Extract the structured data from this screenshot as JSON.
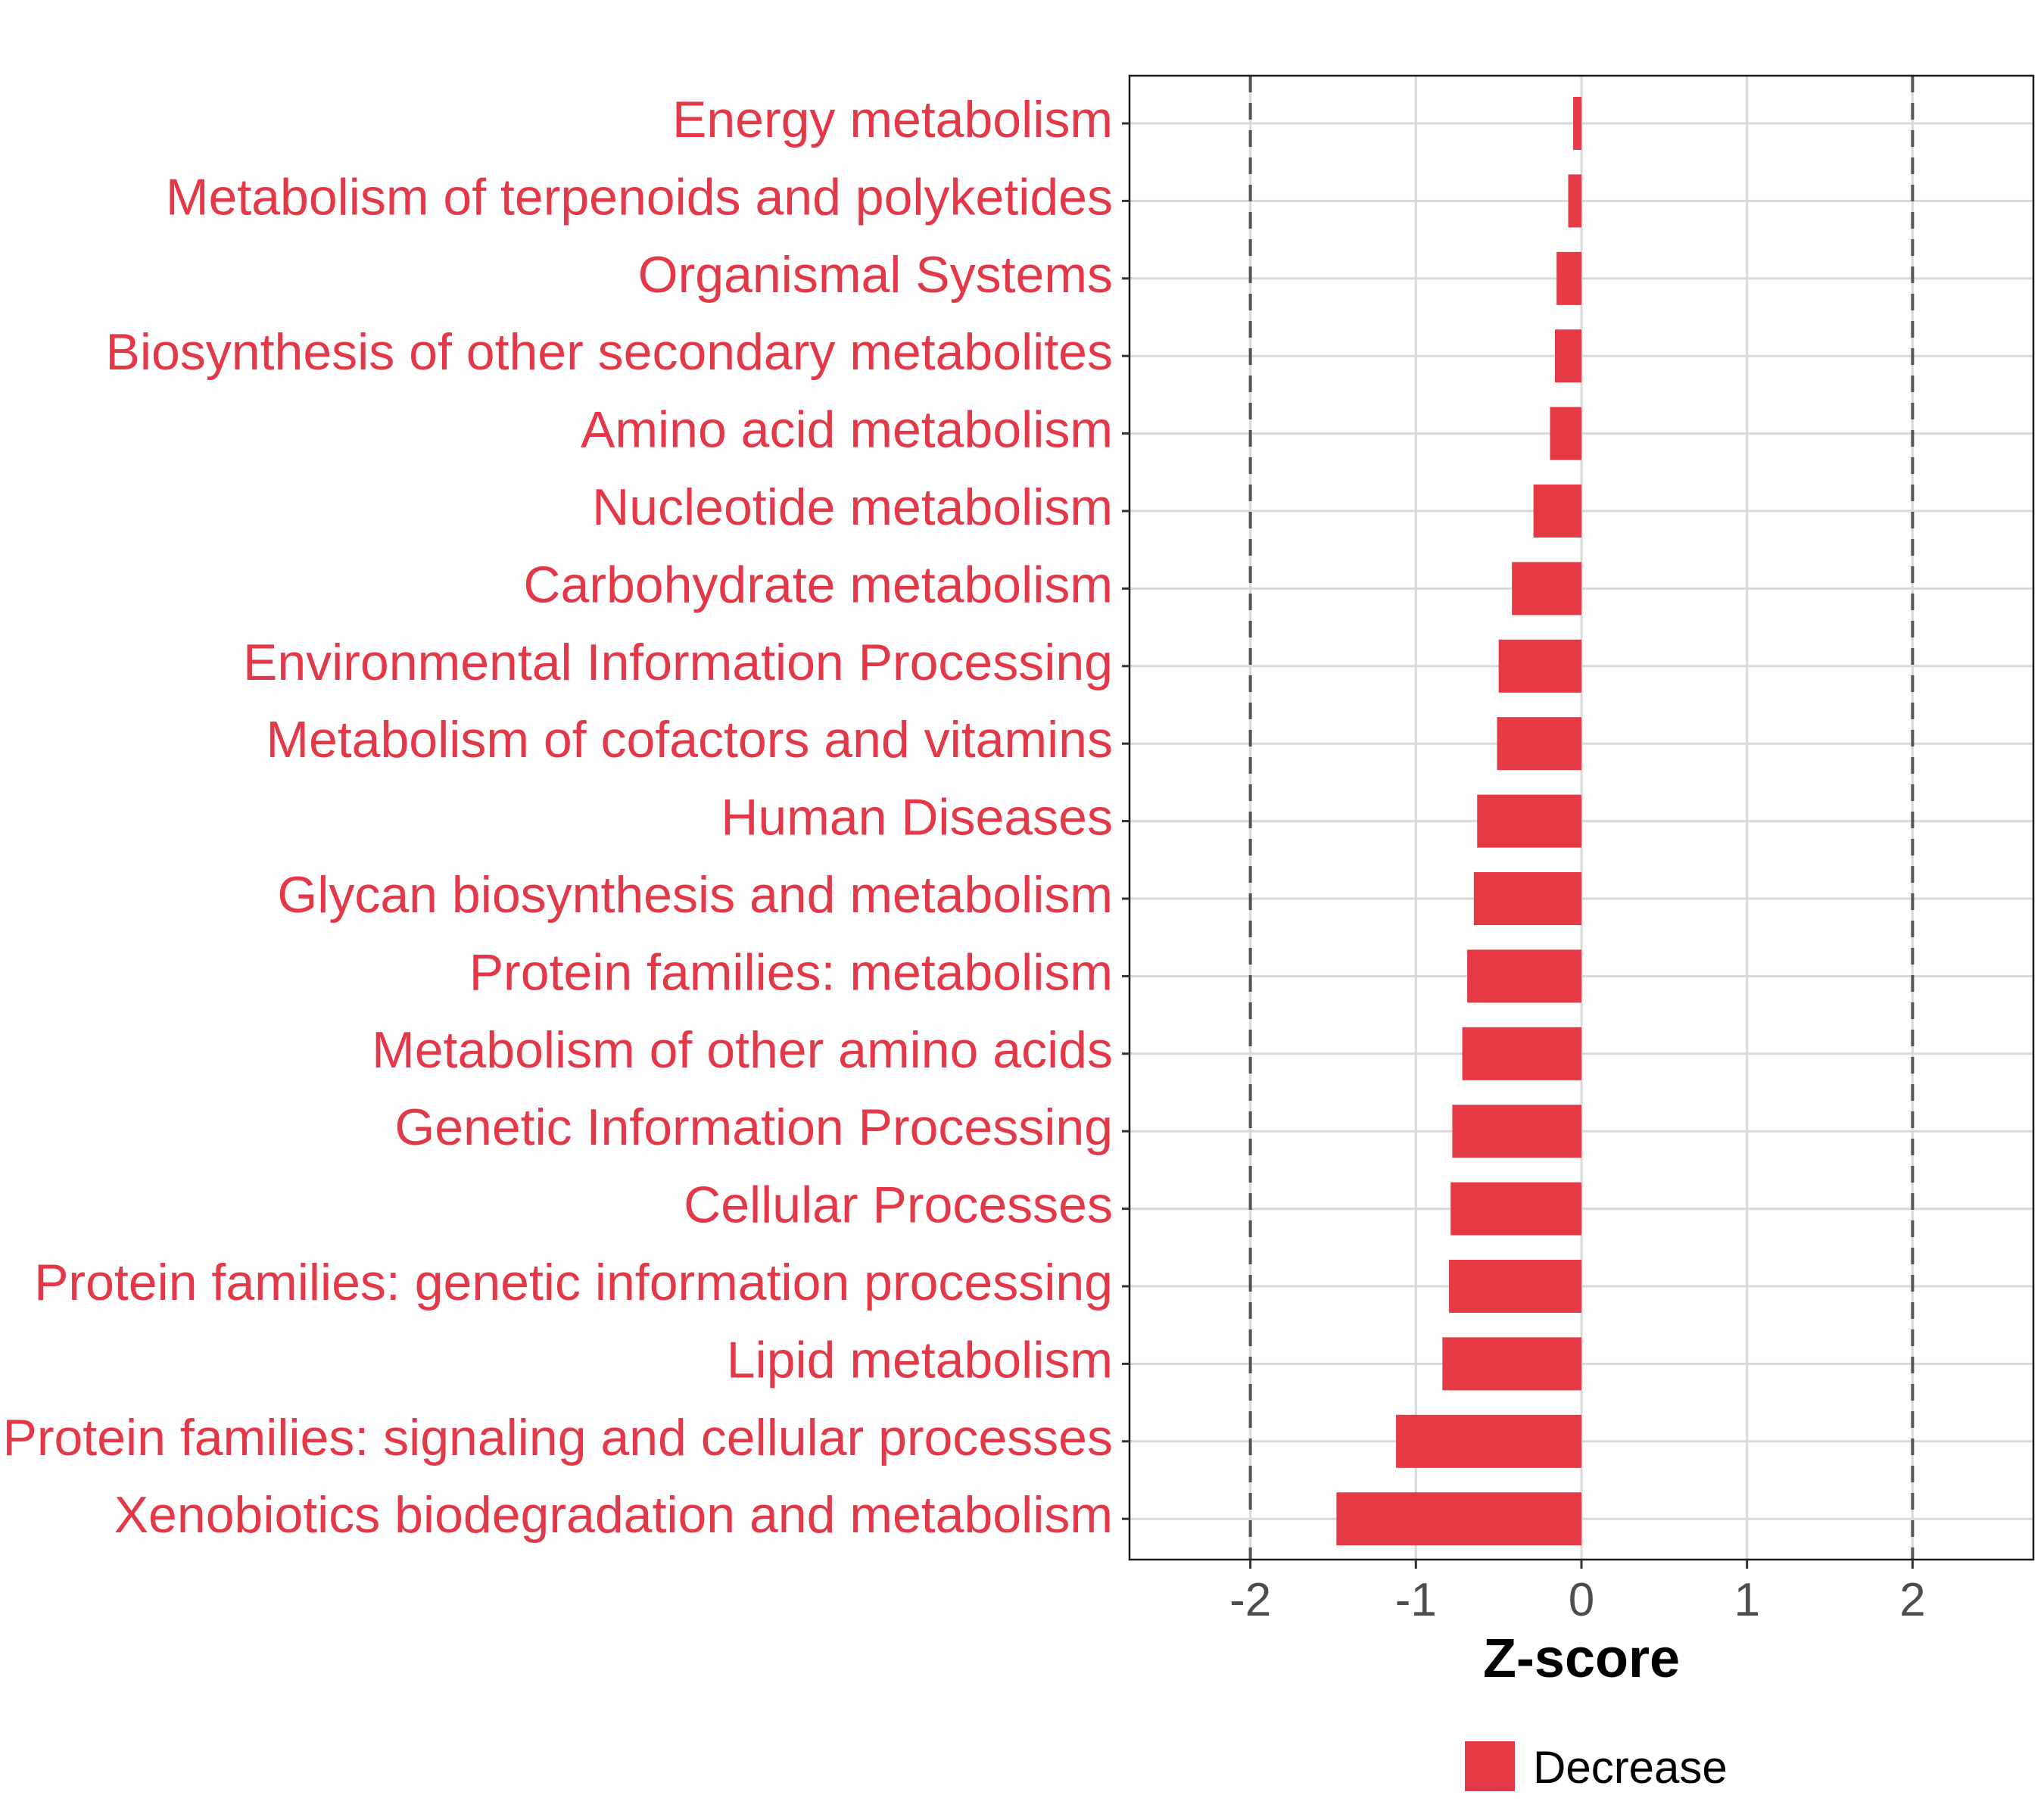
{
  "chart_data": {
    "type": "bar",
    "orientation": "horizontal",
    "categories": [
      "Energy metabolism",
      "Metabolism of terpenoids and polyketides",
      "Organismal Systems",
      "Biosynthesis of other secondary metabolites",
      "Amino acid metabolism",
      "Nucleotide metabolism",
      "Carbohydrate metabolism",
      "Environmental Information Processing",
      "Metabolism of cofactors and vitamins",
      "Human Diseases",
      "Glycan biosynthesis and metabolism",
      "Protein families: metabolism",
      "Metabolism of other amino acids",
      "Genetic Information Processing",
      "Cellular Processes",
      "Protein families: genetic information processing",
      "Lipid metabolism",
      "Protein families: signaling and cellular processes",
      "Xenobiotics biodegradation and metabolism"
    ],
    "values": [
      -0.05,
      -0.08,
      -0.15,
      -0.16,
      -0.19,
      -0.29,
      -0.42,
      -0.5,
      -0.51,
      -0.63,
      -0.65,
      -0.69,
      -0.72,
      -0.78,
      -0.79,
      -0.8,
      -0.84,
      -1.12,
      -1.48
    ],
    "xlabel": "Z-score",
    "ylabel": "",
    "xlim": [
      -2.73,
      2.73
    ],
    "xticks": [
      -2,
      -1,
      0,
      1,
      2
    ],
    "xtick_labels": [
      "-2",
      "-1",
      "0",
      "1",
      "2"
    ],
    "reference_lines": [
      -2,
      2
    ],
    "grid": true,
    "legend": {
      "placement": "bottom",
      "entries": [
        {
          "label": "Decrease",
          "color": "#e63946"
        }
      ]
    },
    "colors": {
      "bar": "#e63946",
      "category_label": "#e23848",
      "grid": "#d9d9d9",
      "reference_line": "#555555",
      "tick_label": "#4d4d4d"
    }
  }
}
